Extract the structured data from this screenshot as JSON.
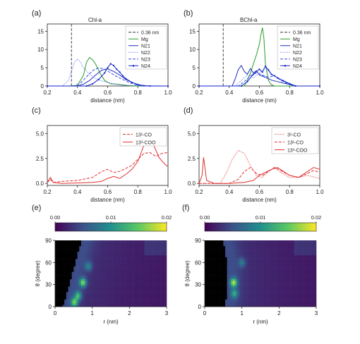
{
  "chart_data": [
    {
      "panel": "(a)",
      "type": "line",
      "title": "Chl-a",
      "xlabel": "distance (nm)",
      "xlim": [
        0.2,
        1.0
      ],
      "ylim": [
        0,
        17
      ],
      "xticks": [
        "0.2",
        "0.4",
        "0.6",
        "0.8",
        "1.0"
      ],
      "yticks": [
        "0",
        "5",
        "10",
        "15"
      ],
      "legend_position": "top-right",
      "vline": 0.36,
      "series": [
        {
          "name": "0.36 nm",
          "color": "#333333",
          "style": "dashed",
          "x": [],
          "y": []
        },
        {
          "name": "Mg",
          "color": "#2a9a2a",
          "style": "solid",
          "x": [
            0.2,
            0.35,
            0.4,
            0.44,
            0.46,
            0.48,
            0.5,
            0.52,
            0.55,
            0.58,
            0.62,
            0.66,
            0.7,
            0.74,
            0.78,
            0.82,
            1.0
          ],
          "y": [
            0,
            0,
            0.2,
            3.0,
            6.5,
            7.8,
            7.2,
            6.0,
            3.5,
            1.5,
            0.6,
            0.5,
            0.3,
            0.1,
            0,
            0,
            0
          ]
        },
        {
          "name": "N21",
          "color": "#1c2db8",
          "style": "solid",
          "x": [
            0.2,
            0.4,
            0.44,
            0.48,
            0.52,
            0.56,
            0.6,
            0.64,
            0.68,
            0.72,
            0.76,
            0.8,
            0.84,
            1.0
          ],
          "y": [
            0,
            0,
            0.5,
            1.5,
            3.0,
            4.3,
            4.7,
            4.0,
            3.0,
            1.8,
            1.0,
            0.4,
            0,
            0
          ]
        },
        {
          "name": "N22",
          "color": "#5468ff",
          "style": "dotted",
          "x": [
            0.2,
            0.3,
            0.34,
            0.36,
            0.38,
            0.4,
            0.42,
            0.44,
            0.48,
            0.52,
            0.56,
            0.6,
            0.64,
            0.7,
            1.0
          ],
          "y": [
            0,
            0,
            1.5,
            4.0,
            6.5,
            7.4,
            6.5,
            5.0,
            3.2,
            2.0,
            1.4,
            1.0,
            0.6,
            0.2,
            0
          ]
        },
        {
          "name": "N23",
          "color": "#3a4fe0",
          "style": "dashed",
          "x": [
            0.2,
            0.38,
            0.42,
            0.46,
            0.5,
            0.54,
            0.58,
            0.62,
            0.66,
            0.7,
            0.74,
            0.78,
            0.82,
            1.0
          ],
          "y": [
            0,
            0,
            0.8,
            2.5,
            4.2,
            5.0,
            4.6,
            3.6,
            2.6,
            1.8,
            1.0,
            0.4,
            0,
            0
          ]
        },
        {
          "name": "N24",
          "color": "#1226c8",
          "style": "solid-marker",
          "x": [
            0.2,
            0.46,
            0.5,
            0.54,
            0.58,
            0.6,
            0.62,
            0.64,
            0.66,
            0.68,
            0.7,
            0.72,
            0.76,
            0.8,
            0.84,
            0.88,
            1.0
          ],
          "y": [
            0,
            0,
            0.6,
            1.8,
            3.6,
            5.0,
            6.1,
            5.6,
            4.6,
            3.8,
            2.8,
            2.0,
            1.0,
            0.4,
            0.1,
            0,
            0
          ]
        }
      ]
    },
    {
      "panel": "(b)",
      "type": "line",
      "title": "BChl-a",
      "xlabel": "distance (nm)",
      "xlim": [
        0.2,
        1.0
      ],
      "ylim": [
        0,
        17
      ],
      "xticks": [
        "0.2",
        "0.4",
        "0.6",
        "0.8",
        "1.0"
      ],
      "yticks": [
        "0",
        "5",
        "10",
        "15"
      ],
      "legend_position": "top-right",
      "vline": 0.36,
      "series": [
        {
          "name": "0.36 nm",
          "color": "#333333",
          "style": "dashed",
          "x": [],
          "y": []
        },
        {
          "name": "Mg",
          "color": "#2a9a2a",
          "style": "solid",
          "x": [
            0.2,
            0.5,
            0.52,
            0.54,
            0.56,
            0.58,
            0.6,
            0.61,
            0.62,
            0.63,
            0.64,
            0.66,
            0.68,
            0.7,
            1.0
          ],
          "y": [
            0,
            0,
            1.5,
            3.5,
            6.0,
            8.5,
            11.5,
            14.0,
            16.0,
            13.0,
            6.0,
            1.5,
            0.3,
            0,
            0
          ]
        },
        {
          "name": "N21",
          "color": "#1c2db8",
          "style": "solid",
          "x": [
            0.2,
            0.42,
            0.44,
            0.46,
            0.48,
            0.5,
            0.52,
            0.54,
            0.56,
            0.58,
            0.6,
            0.64,
            0.68,
            0.72,
            0.76,
            0.8,
            0.84,
            1.0
          ],
          "y": [
            0,
            0,
            2.0,
            4.5,
            5.6,
            4.0,
            3.2,
            4.8,
            3.6,
            4.2,
            3.0,
            2.4,
            1.6,
            1.2,
            0.8,
            0.4,
            0,
            0
          ]
        },
        {
          "name": "N22",
          "color": "#5468ff",
          "style": "dotted",
          "x": [
            0.2,
            0.44,
            0.48,
            0.52,
            0.56,
            0.6,
            0.64,
            0.68,
            0.72,
            0.76,
            0.8,
            0.84,
            1.0
          ],
          "y": [
            0,
            0,
            1.5,
            3.0,
            2.2,
            3.5,
            5.2,
            3.0,
            2.4,
            1.5,
            0.8,
            0,
            0
          ]
        },
        {
          "name": "N23",
          "color": "#3a4fe0",
          "style": "dashed",
          "x": [
            0.2,
            0.46,
            0.5,
            0.54,
            0.58,
            0.62,
            0.66,
            0.7,
            0.74,
            0.78,
            0.82,
            1.0
          ],
          "y": [
            0,
            0,
            1.2,
            2.8,
            3.6,
            3.0,
            2.4,
            2.8,
            1.6,
            0.8,
            0,
            0
          ]
        },
        {
          "name": "N24",
          "color": "#1226c8",
          "style": "solid-marker",
          "x": [
            0.2,
            0.48,
            0.52,
            0.56,
            0.6,
            0.62,
            0.64,
            0.66,
            0.68,
            0.7,
            0.72,
            0.76,
            0.8,
            0.84,
            1.0
          ],
          "y": [
            0,
            0,
            1.2,
            3.2,
            4.6,
            3.8,
            5.4,
            4.4,
            3.2,
            2.8,
            2.2,
            1.4,
            0.6,
            0,
            0
          ]
        }
      ]
    },
    {
      "panel": "(c)",
      "type": "line",
      "xlabel": "distance (nm)",
      "xlim": [
        0.2,
        1.0
      ],
      "ylim": [
        -0.2,
        5.8
      ],
      "xticks": [
        "0.2",
        "0.4",
        "0.6",
        "0.8",
        "1.0"
      ],
      "yticks": [
        "0.0",
        "2.5",
        "5.0"
      ],
      "legend_position": "top-right",
      "series": [
        {
          "name": "13¹-CO",
          "color": "#e03030",
          "style": "dashed",
          "x": [
            0.2,
            0.22,
            0.24,
            0.3,
            0.4,
            0.5,
            0.56,
            0.6,
            0.64,
            0.68,
            0.72,
            0.76,
            0.8,
            0.84,
            0.88,
            0.92,
            0.96,
            1.0
          ],
          "y": [
            0.1,
            0.4,
            0.1,
            0.2,
            0.3,
            0.6,
            1.2,
            1.4,
            1.1,
            1.2,
            1.5,
            1.8,
            2.4,
            3.0,
            3.1,
            2.7,
            3.0,
            3.1
          ]
        },
        {
          "name": "13³-COO",
          "color": "#e03030",
          "style": "solid",
          "x": [
            0.2,
            0.22,
            0.24,
            0.3,
            0.4,
            0.5,
            0.56,
            0.6,
            0.64,
            0.68,
            0.72,
            0.76,
            0.8,
            0.84,
            0.86,
            0.88,
            0.9,
            0.94,
            0.98,
            1.0
          ],
          "y": [
            0.1,
            0.6,
            0.1,
            0,
            0.05,
            0.1,
            0.2,
            0.5,
            0.7,
            0.5,
            0.9,
            1.4,
            2.2,
            3.8,
            4.6,
            4.9,
            4.0,
            2.6,
            1.9,
            1.7
          ]
        }
      ]
    },
    {
      "panel": "(d)",
      "type": "line",
      "xlabel": "distance (nm)",
      "xlim": [
        0.2,
        1.0
      ],
      "ylim": [
        -0.2,
        5.8
      ],
      "xticks": [
        "0.2",
        "0.4",
        "0.6",
        "0.8",
        "1.0"
      ],
      "yticks": [
        "0.0",
        "2.5",
        "5.0"
      ],
      "legend_position": "top-right",
      "series": [
        {
          "name": "3¹-CO",
          "color": "#e03030",
          "style": "dotted",
          "x": [
            0.2,
            0.34,
            0.38,
            0.42,
            0.46,
            0.5,
            0.54,
            0.58,
            0.62,
            0.66,
            0.7,
            0.74,
            0.8,
            0.86,
            0.92,
            1.0
          ],
          "y": [
            0,
            0,
            1.0,
            2.4,
            3.3,
            3.0,
            1.8,
            0.8,
            0.6,
            1.2,
            1.6,
            1.1,
            0.6,
            0.6,
            0.8,
            0.5
          ]
        },
        {
          "name": "13¹-CO",
          "color": "#e03030",
          "style": "dashed",
          "x": [
            0.2,
            0.4,
            0.46,
            0.5,
            0.54,
            0.58,
            0.62,
            0.66,
            0.7,
            0.74,
            0.8,
            0.86,
            0.92,
            0.96,
            1.0
          ],
          "y": [
            0,
            0,
            0.4,
            1.2,
            1.6,
            1.0,
            0.8,
            1.2,
            1.6,
            1.3,
            0.8,
            0.6,
            1.0,
            1.3,
            1.1
          ]
        },
        {
          "name": "13³-COO",
          "color": "#e03030",
          "style": "solid",
          "x": [
            0.2,
            0.22,
            0.23,
            0.25,
            0.3,
            0.4,
            0.5,
            0.56,
            0.6,
            0.64,
            0.68,
            0.72,
            0.76,
            0.8,
            0.86,
            0.92,
            0.96,
            1.0
          ],
          "y": [
            0,
            0.8,
            2.6,
            0.3,
            0,
            0,
            0.1,
            0.3,
            0.8,
            1.1,
            1.4,
            1.6,
            1.2,
            0.8,
            0.6,
            1.2,
            1.6,
            1.4
          ]
        }
      ]
    },
    {
      "panel": "(e)",
      "type": "heatmap",
      "xlabel": "r (nm)",
      "ylabel": "θ (degree)",
      "xlim": [
        0,
        3
      ],
      "ylim": [
        0,
        90
      ],
      "xticks": [
        "0",
        "1",
        "2",
        "3"
      ],
      "yticks": [
        "0",
        "30",
        "60",
        "90"
      ],
      "colorbar": {
        "range": [
          0.0,
          0.02
        ],
        "ticks": [
          "0.00",
          "0.01",
          "0.02"
        ]
      },
      "excluded_region_r_nm": [
        [
          0,
          0.2
        ],
        [
          15,
          0.3
        ],
        [
          30,
          0.4
        ],
        [
          45,
          0.45
        ],
        [
          60,
          0.55
        ],
        [
          75,
          0.62
        ],
        [
          90,
          0.72
        ]
      ],
      "hotspots": [
        {
          "r": 0.52,
          "theta": 6,
          "density": 0.012
        },
        {
          "r": 0.62,
          "theta": 15,
          "density": 0.01
        },
        {
          "r": 0.75,
          "theta": 33,
          "density": 0.013
        },
        {
          "r": 0.9,
          "theta": 55,
          "density": 0.006
        }
      ]
    },
    {
      "panel": "(f)",
      "type": "heatmap",
      "xlabel": "r (nm)",
      "ylabel": "θ (degree)",
      "xlim": [
        0,
        3
      ],
      "ylim": [
        0,
        90
      ],
      "xticks": [
        "0",
        "1",
        "2",
        "3"
      ],
      "yticks": [
        "0",
        "30",
        "60",
        "90"
      ],
      "colorbar": {
        "range": [
          0.0,
          0.02
        ],
        "ticks": [
          "0.00",
          "0.01",
          "0.02"
        ]
      },
      "excluded_region_r_nm": [
        [
          0,
          0.55
        ],
        [
          20,
          0.6
        ],
        [
          40,
          0.62
        ],
        [
          60,
          0.6
        ],
        [
          75,
          0.55
        ],
        [
          90,
          0.5
        ]
      ],
      "hotspots": [
        {
          "r": 0.78,
          "theta": 33,
          "density": 0.014
        },
        {
          "r": 0.8,
          "theta": 18,
          "density": 0.008
        },
        {
          "r": 1.0,
          "theta": 60,
          "density": 0.005
        }
      ]
    }
  ]
}
